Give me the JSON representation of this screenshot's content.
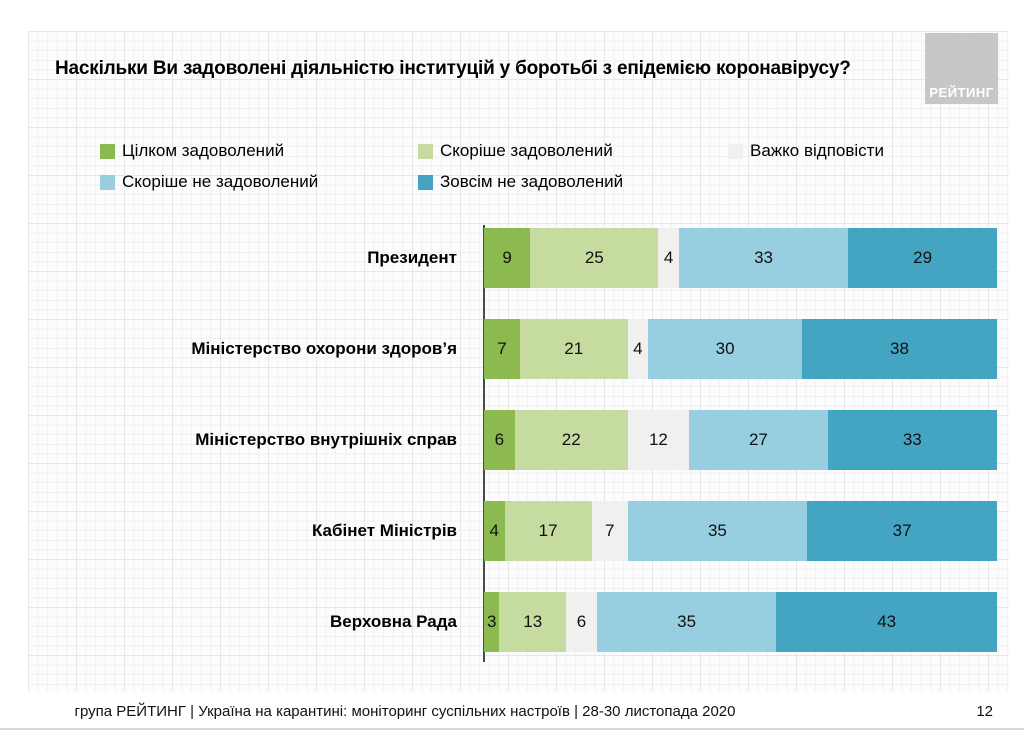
{
  "header": {
    "title": "Наскільки Ви задоволені діяльністю інституцій у боротьбі з епідемією коронавірусу?",
    "logo_text": "РЕЙТИНГ"
  },
  "legend": [
    {
      "label": "Цілком задоволений",
      "color": "#8CBA51"
    },
    {
      "label": "Скоріше задоволений",
      "color": "#C5DB9F"
    },
    {
      "label": "Важко відповісти",
      "color": "#F0F0EE"
    },
    {
      "label": "Скоріше не задоволений",
      "color": "#97CFE0"
    },
    {
      "label": "Зовсім не задоволений",
      "color": "#44A5C3"
    }
  ],
  "chart_data": {
    "type": "bar",
    "stacked": true,
    "orientation": "horizontal",
    "title": "Наскільки Ви задоволені діяльністю інституцій у боротьбі з епідемією коронавірусу?",
    "categories": [
      "Президент",
      "Міністерство охорони здоров’я",
      "Міністерство внутрішніх справ",
      "Кабінет Міністрів",
      "Верховна Рада"
    ],
    "series": [
      {
        "name": "Цілком задоволений",
        "color": "#8CBA51",
        "values": [
          9,
          7,
          6,
          4,
          3
        ]
      },
      {
        "name": "Скоріше задоволений",
        "color": "#C5DB9F",
        "values": [
          25,
          21,
          22,
          17,
          13
        ]
      },
      {
        "name": "Важко відповісти",
        "color": "#F0F0EE",
        "values": [
          4,
          4,
          12,
          7,
          6
        ]
      },
      {
        "name": "Скоріше не задоволений",
        "color": "#97CFE0",
        "values": [
          33,
          30,
          27,
          35,
          35
        ]
      },
      {
        "name": "Зовсім не задоволений",
        "color": "#44A5C3",
        "values": [
          29,
          38,
          33,
          37,
          43
        ]
      }
    ],
    "xlim": [
      0,
      100
    ],
    "value_labels": true,
    "legend_position": "top",
    "grid": true
  },
  "footer": {
    "source": "група РЕЙТИНГ | Україна на карантині: моніторинг суспільних настроїв | 28-30 листопада 2020",
    "page_number": "12"
  }
}
